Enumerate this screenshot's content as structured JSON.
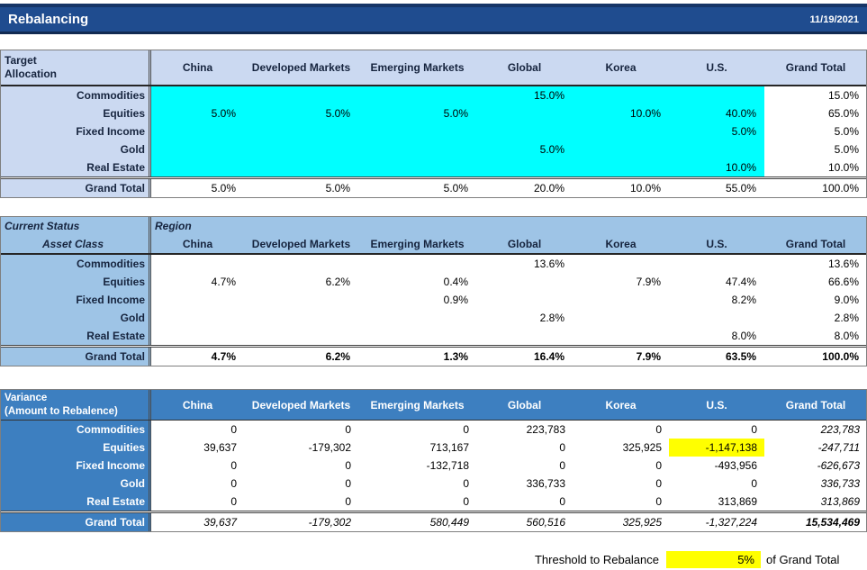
{
  "title_bar": {
    "title": "Rebalancing",
    "date": "11/19/2021"
  },
  "columns": [
    "China",
    "Developed Markets",
    "Emerging Markets",
    "Global",
    "Korea",
    "U.S.",
    "Grand Total"
  ],
  "tables": [
    {
      "id": "target-allocation",
      "corner_label": "Target\nAllocation",
      "rows": [
        {
          "label": "Commodities",
          "values": [
            "",
            "",
            "",
            "15.0%",
            "",
            "",
            "15.0%"
          ]
        },
        {
          "label": "Equities",
          "values": [
            "5.0%",
            "5.0%",
            "5.0%",
            "",
            "10.0%",
            "40.0%",
            "65.0%"
          ]
        },
        {
          "label": "Fixed Income",
          "values": [
            "",
            "",
            "",
            "",
            "",
            "5.0%",
            "5.0%"
          ]
        },
        {
          "label": "Gold",
          "values": [
            "",
            "",
            "",
            "5.0%",
            "",
            "",
            "5.0%"
          ]
        },
        {
          "label": "Real Estate",
          "values": [
            "",
            "",
            "",
            "",
            "",
            "10.0%",
            "10.0%"
          ]
        }
      ],
      "grand_total": {
        "label": "Grand Total",
        "values": [
          "5.0%",
          "5.0%",
          "5.0%",
          "20.0%",
          "10.0%",
          "55.0%",
          "100.0%"
        ]
      }
    },
    {
      "id": "current-status",
      "corner_top": "Current Status",
      "corner_bottom": "Asset Class",
      "region_label": "Region",
      "rows": [
        {
          "label": "Commodities",
          "values": [
            "",
            "",
            "",
            "13.6%",
            "",
            "",
            "13.6%"
          ]
        },
        {
          "label": "Equities",
          "values": [
            "4.7%",
            "6.2%",
            "0.4%",
            "",
            "7.9%",
            "47.4%",
            "66.6%"
          ]
        },
        {
          "label": "Fixed Income",
          "values": [
            "",
            "",
            "0.9%",
            "",
            "",
            "8.2%",
            "9.0%"
          ]
        },
        {
          "label": "Gold",
          "values": [
            "",
            "",
            "",
            "2.8%",
            "",
            "",
            "2.8%"
          ]
        },
        {
          "label": "Real Estate",
          "values": [
            "",
            "",
            "",
            "",
            "",
            "8.0%",
            "8.0%"
          ]
        }
      ],
      "grand_total": {
        "label": "Grand Total",
        "values": [
          "4.7%",
          "6.2%",
          "1.3%",
          "16.4%",
          "7.9%",
          "63.5%",
          "100.0%"
        ]
      }
    },
    {
      "id": "variance",
      "corner_label": "Variance\n(Amount to Rebalence)",
      "rows": [
        {
          "label": "Commodities",
          "values": [
            "0",
            "0",
            "0",
            "223,783",
            "0",
            "0",
            "223,783"
          ]
        },
        {
          "label": "Equities",
          "values": [
            "39,637",
            "-179,302",
            "713,167",
            "0",
            "325,925",
            "-1,147,138",
            "-247,711"
          ],
          "highlight_col": 5
        },
        {
          "label": "Fixed Income",
          "values": [
            "0",
            "0",
            "-132,718",
            "0",
            "0",
            "-493,956",
            "-626,673"
          ]
        },
        {
          "label": "Gold",
          "values": [
            "0",
            "0",
            "0",
            "336,733",
            "0",
            "0",
            "336,733"
          ]
        },
        {
          "label": "Real Estate",
          "values": [
            "0",
            "0",
            "0",
            "0",
            "0",
            "313,869",
            "313,869"
          ]
        }
      ],
      "grand_total": {
        "label": "Grand Total",
        "values": [
          "39,637",
          "-179,302",
          "580,449",
          "560,516",
          "325,925",
          "-1,327,224",
          "15,534,469"
        ]
      }
    }
  ],
  "footer": {
    "threshold_label": "Threshold to Rebalance",
    "threshold_value": "5%",
    "threshold_suffix": "of Grand Total"
  },
  "colors": {
    "title_bar_bg": "#1F4C8F",
    "target_table_header": "#CBD9F1",
    "target_fill": "#00FFFF",
    "current_table_header": "#9EC4E6",
    "variance_table_header": "#3D7FC0",
    "highlight": "#FFFF00"
  }
}
